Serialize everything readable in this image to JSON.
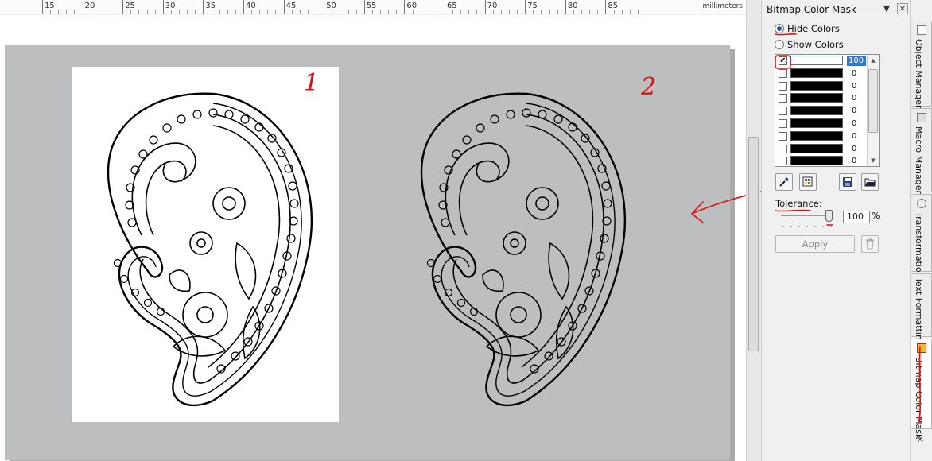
{
  "ruler": {
    "unit": "millimeters",
    "labels": [
      "15",
      "20",
      "25",
      "30",
      "35",
      "40",
      "45",
      "50",
      "55",
      "60",
      "65",
      "70",
      "75",
      "80",
      "85"
    ]
  },
  "canvas": {
    "annotations": [
      "1",
      "2"
    ]
  },
  "docker": {
    "title": "Bitmap Color Mask",
    "mode_hide": "Hide Colors",
    "mode_show": "Show Colors",
    "selected_mode": "hide",
    "colors": [
      {
        "checked": true,
        "swatch": "#ffffff",
        "tolerance": "100"
      },
      {
        "checked": false,
        "swatch": "#000000",
        "tolerance": "0"
      },
      {
        "checked": false,
        "swatch": "#000000",
        "tolerance": "0"
      },
      {
        "checked": false,
        "swatch": "#000000",
        "tolerance": "0"
      },
      {
        "checked": false,
        "swatch": "#000000",
        "tolerance": "0"
      },
      {
        "checked": false,
        "swatch": "#000000",
        "tolerance": "0"
      },
      {
        "checked": false,
        "swatch": "#000000",
        "tolerance": "0"
      },
      {
        "checked": false,
        "swatch": "#000000",
        "tolerance": "0"
      },
      {
        "checked": false,
        "swatch": "#000000",
        "tolerance": "0"
      }
    ],
    "tools": {
      "eyedropper": "eyedropper-icon",
      "edit_color": "edit-color-icon",
      "save": "save-icon",
      "open": "open-folder-icon"
    },
    "tolerance_label": "Tolerance:",
    "tolerance_value": "100",
    "tolerance_unit": "%",
    "apply_label": "Apply"
  },
  "side_tabs": [
    "Object Manager",
    "Macro Manager",
    "Transformation",
    "Text Formatting",
    "Bitmap Color Mask"
  ],
  "active_tab": "Bitmap Color Mask",
  "accent_color": "#3377cc",
  "annotation_color": "#e01010"
}
